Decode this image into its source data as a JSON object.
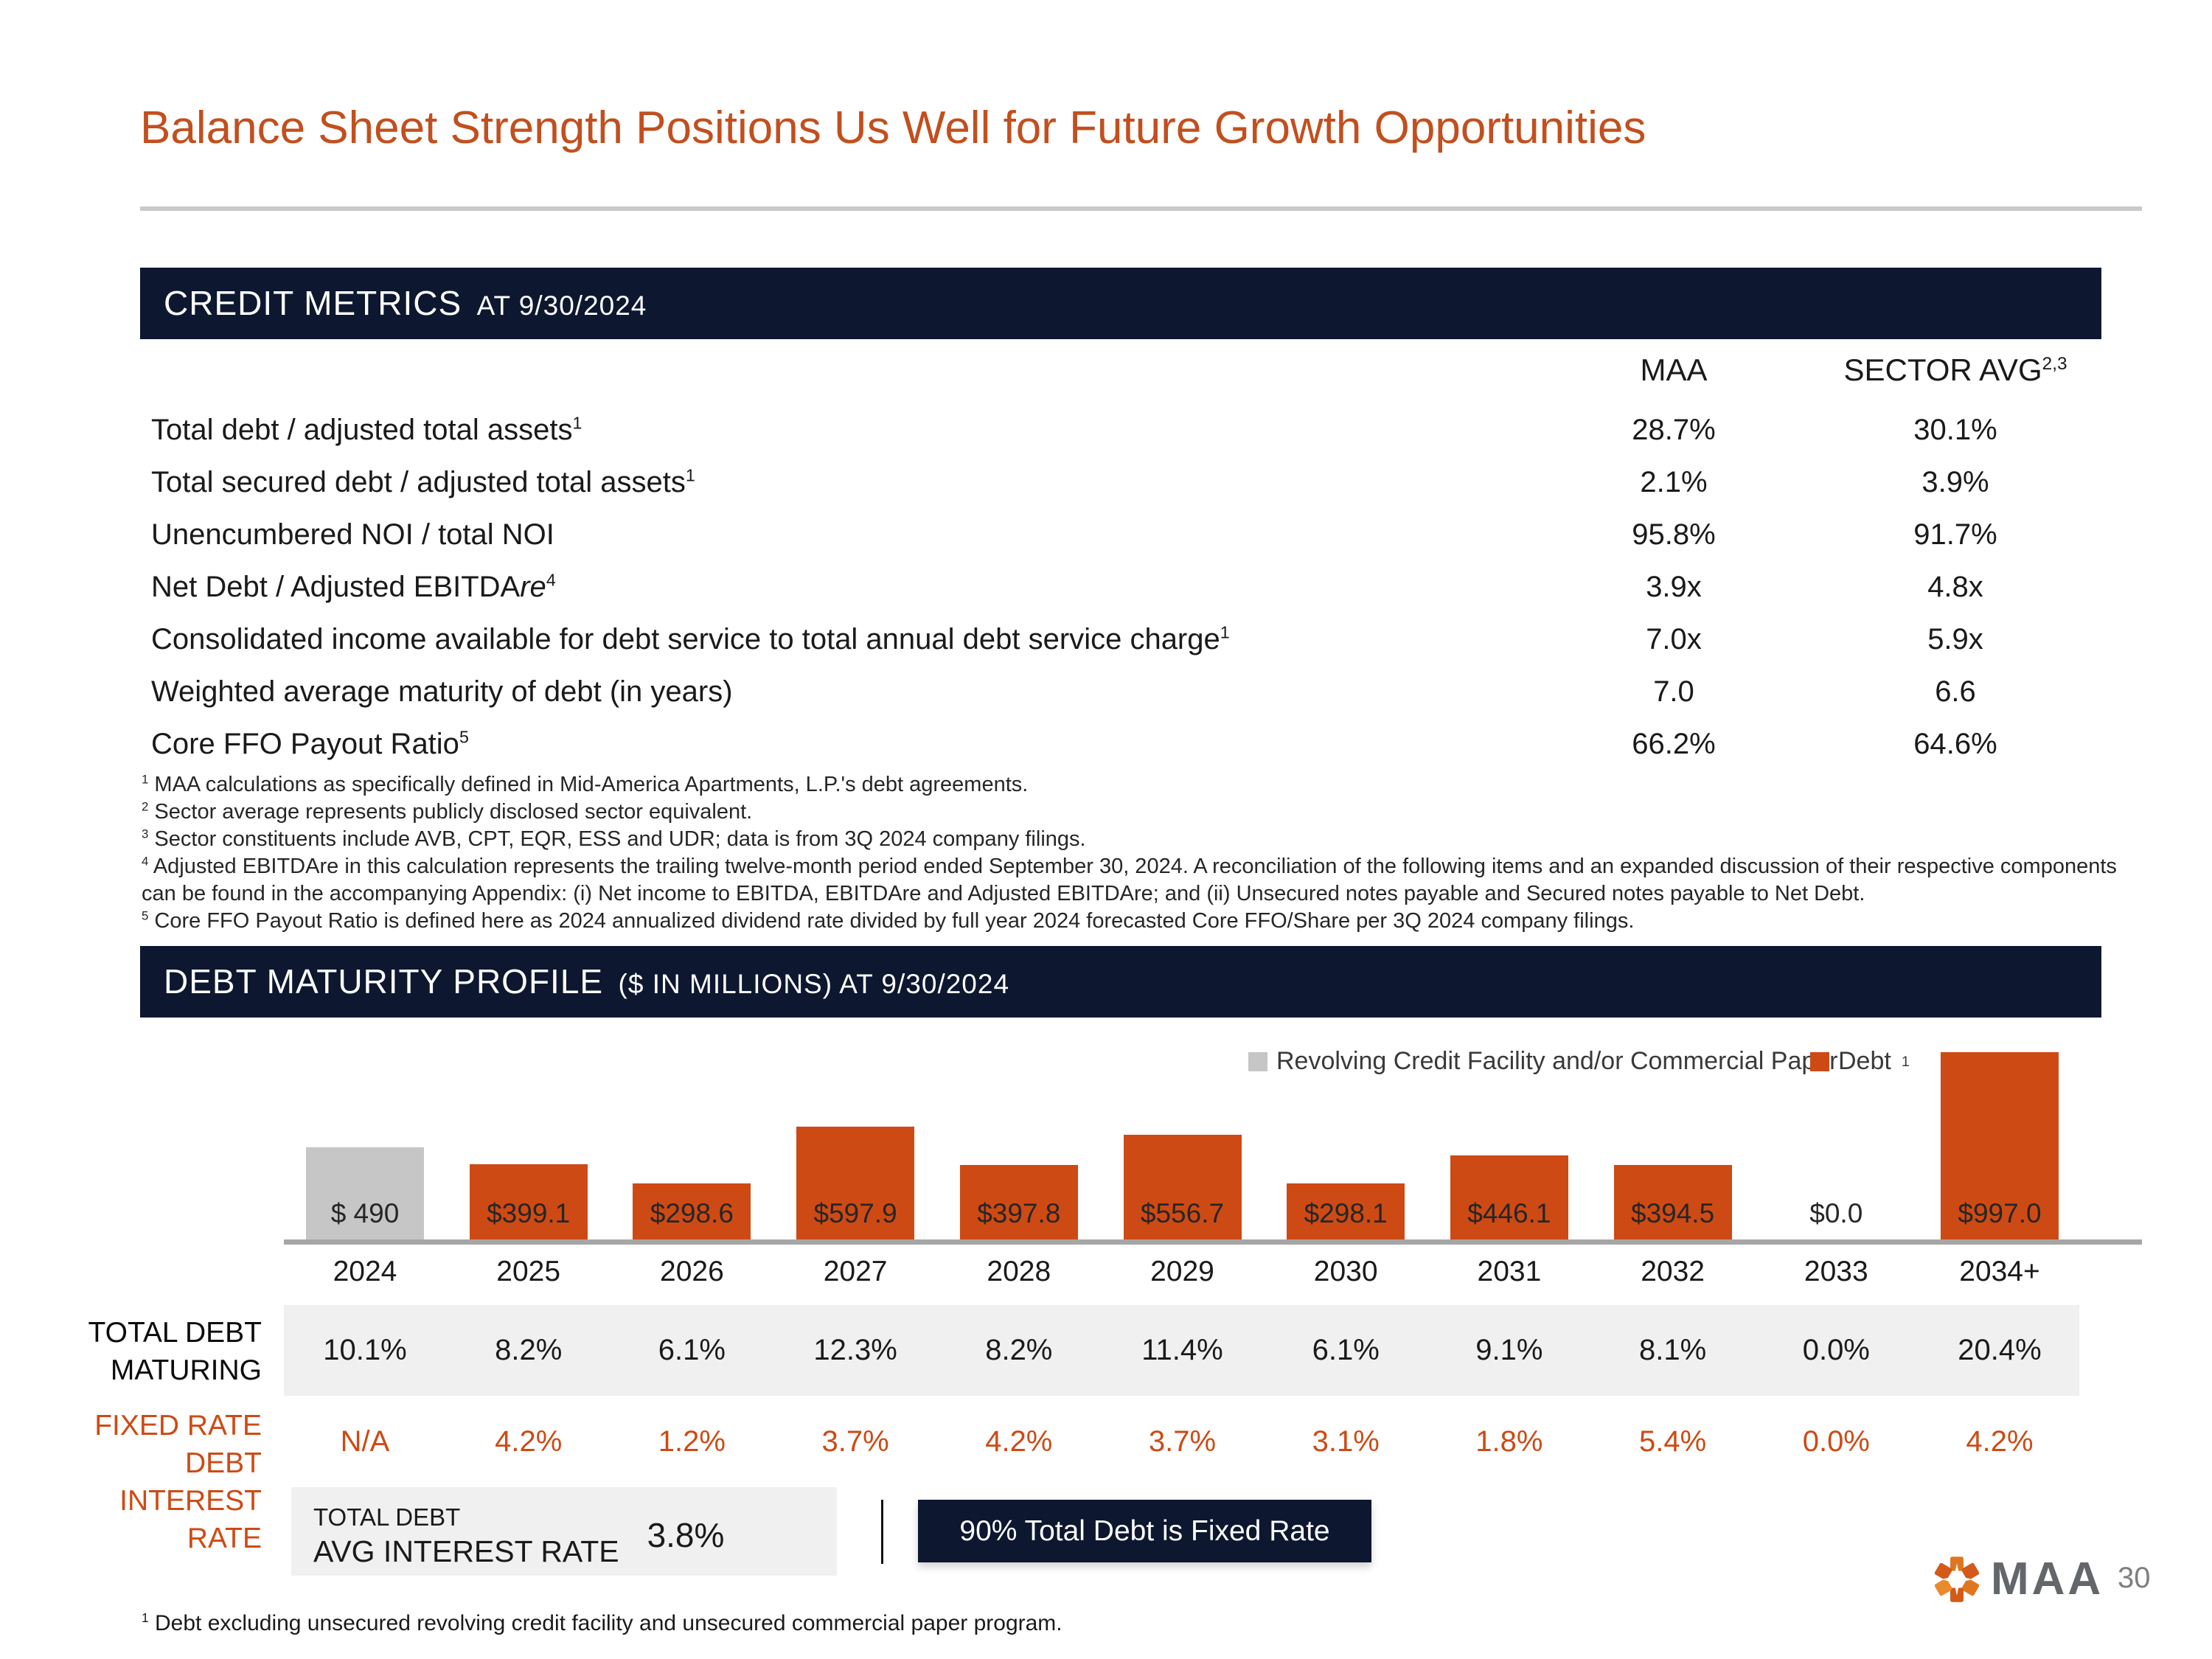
{
  "title": "Balance Sheet Strength Positions Us Well for Future Growth Opportunities",
  "page_number": "30",
  "credit_metrics": {
    "header": "CREDIT METRICS",
    "header_suffix": "AT 9/30/2024",
    "columns": {
      "maa": "MAA",
      "sector": "SECTOR AVG",
      "sector_sup": "2,3"
    },
    "rows": [
      {
        "label": "Total debt / adjusted total assets",
        "sup": "1",
        "maa": "28.7%",
        "sector": "30.1%"
      },
      {
        "label": "Total secured debt / adjusted total assets",
        "sup": "1",
        "maa": "2.1%",
        "sector": "3.9%"
      },
      {
        "label": "Unencumbered NOI / total NOI",
        "sup": "",
        "maa": "95.8%",
        "sector": "91.7%"
      },
      {
        "label": "Net Debt / Adjusted EBITDA",
        "italic": "re",
        "sup": "4",
        "maa": "3.9x",
        "sector": "4.8x"
      },
      {
        "label": "Consolidated income available for debt service to total annual debt service charge",
        "sup": "1",
        "maa": "7.0x",
        "sector": "5.9x"
      },
      {
        "label": "Weighted average maturity of debt (in years)",
        "sup": "",
        "maa": "7.0",
        "sector": "6.6"
      },
      {
        "label": "Core FFO Payout Ratio",
        "sup": "5",
        "maa": "66.2%",
        "sector": "64.6%"
      }
    ],
    "footnotes": [
      {
        "sup": "1",
        "text": "MAA calculations as specifically defined in Mid-America Apartments, L.P.'s debt agreements."
      },
      {
        "sup": "2",
        "text": "Sector average represents publicly disclosed sector equivalent."
      },
      {
        "sup": "3",
        "text": "Sector constituents include AVB, CPT, EQR, ESS and UDR; data is from 3Q 2024 company filings."
      },
      {
        "sup": "4",
        "text": "Adjusted EBITDAre in this calculation represents the trailing twelve-month period ended September 30, 2024. A reconciliation of the following items and an expanded discussion of their respective components can be found in the accompanying Appendix: (i) Net income to EBITDA, EBITDAre and Adjusted EBITDAre; and (ii) Unsecured notes payable and Secured notes payable to Net Debt."
      },
      {
        "sup": "5",
        "text": "Core FFO Payout Ratio is defined here as 2024 annualized dividend rate divided by full year 2024 forecasted Core FFO/Share per 3Q 2024 company filings."
      }
    ]
  },
  "debt_maturity": {
    "header": "DEBT MATURITY PROFILE",
    "header_suffix": "($ IN MILLIONS) AT 9/30/2024",
    "legend": [
      {
        "label": "Revolving Credit Facility and/or Commercial Paper",
        "sup": "",
        "color": "#C6C6C6"
      },
      {
        "label": "Debt",
        "sup": "1",
        "color": "#CE4A14"
      }
    ],
    "row_labels": {
      "maturing_line1": "TOTAL DEBT",
      "maturing_line2": "MATURING",
      "fixed_line1": "FIXED RATE DEBT",
      "fixed_line2": "INTEREST RATE"
    },
    "avg_box": {
      "line1": "TOTAL DEBT",
      "line2": "AVG INTEREST RATE",
      "value": "3.8%"
    },
    "fixed_rate_banner": "90% Total Debt is Fixed Rate",
    "footnote": {
      "sup": "1",
      "text": "Debt excluding unsecured revolving credit facility and unsecured commercial paper program."
    }
  },
  "chart_data": {
    "type": "bar",
    "title": "DEBT MATURITY PROFILE ($ IN MILLIONS) AT 9/30/2024",
    "categories": [
      "2024",
      "2025",
      "2026",
      "2027",
      "2028",
      "2029",
      "2030",
      "2031",
      "2032",
      "2033",
      "2034+"
    ],
    "series": [
      {
        "name": "Revolving Credit Facility and/or Commercial Paper",
        "values": [
          490,
          0,
          0,
          0,
          0,
          0,
          0,
          0,
          0,
          0,
          0
        ]
      },
      {
        "name": "Debt",
        "values": [
          0,
          399.1,
          298.6,
          597.9,
          397.8,
          556.7,
          298.1,
          446.1,
          394.5,
          0,
          997.0
        ]
      }
    ],
    "bar_labels": [
      "$ 490",
      "$399.1",
      "$298.6",
      "$597.9",
      "$397.8",
      "$556.7",
      "$298.1",
      "$446.1",
      "$394.5",
      "$0.0",
      "$997.0"
    ],
    "total_debt_maturing": [
      "10.1%",
      "8.2%",
      "6.1%",
      "12.3%",
      "8.2%",
      "11.4%",
      "6.1%",
      "9.1%",
      "8.1%",
      "0.0%",
      "20.4%"
    ],
    "fixed_rate_interest_rate": [
      "N/A",
      "4.2%",
      "1.2%",
      "3.7%",
      "4.2%",
      "3.7%",
      "3.1%",
      "1.8%",
      "5.4%",
      "0.0%",
      "4.2%"
    ],
    "ylim": [
      0,
      1000
    ],
    "grid": false,
    "legend_position": "top-right",
    "bar_colors": {
      "revolver": "#C6C6C6",
      "debt": "#CE4A14"
    }
  },
  "logo": {
    "text": "MAA"
  },
  "colors": {
    "accent_orange": "#CE4A14",
    "title_orange": "#C24F1E",
    "navy": "#0D1730",
    "revolver_gray": "#C6C6C6",
    "strip_gray": "#F0F0F0",
    "axis_gray": "#A6A6A6",
    "logo_gray": "#63666A"
  }
}
